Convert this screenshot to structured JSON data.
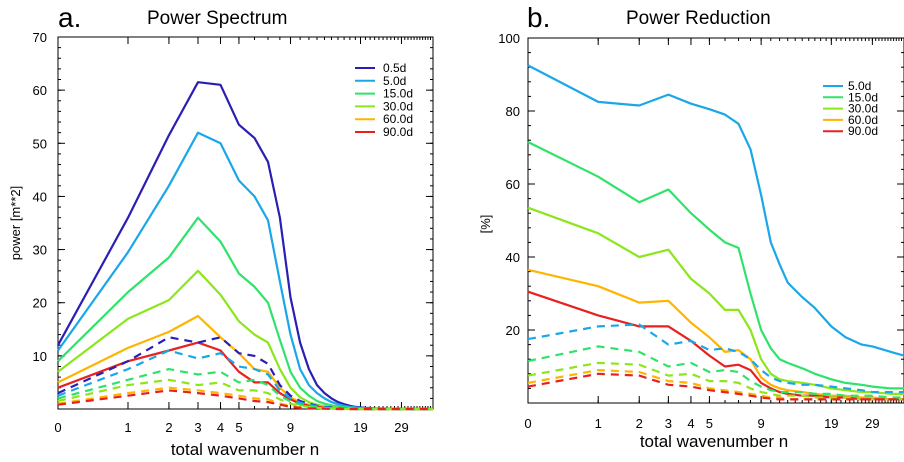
{
  "chart_data": [
    {
      "type": "line",
      "panel_letter": "a.",
      "title": "Power Spectrum",
      "xlabel": "total wavenumber n",
      "ylabel": "power [m**2]",
      "ylim": [
        0,
        70
      ],
      "yticks": [
        10,
        20,
        30,
        40,
        50,
        60,
        70
      ],
      "x_scale": "log(n+1)",
      "xticks": [
        {
          "value": 0,
          "label": "0"
        },
        {
          "value": 1,
          "label": "1"
        },
        {
          "value": 2,
          "label": "2"
        },
        {
          "value": 3,
          "label": "3"
        },
        {
          "value": 4,
          "label": "4"
        },
        {
          "value": 5,
          "label": "5"
        },
        {
          "value": 9,
          "label": "9"
        },
        {
          "value": 19,
          "label": "19"
        },
        {
          "value": 29,
          "label": "29"
        }
      ],
      "xlim": [
        0,
        40
      ],
      "legend_position": "top-right",
      "x": [
        0,
        1,
        2,
        3,
        4,
        5,
        6,
        7,
        8,
        9,
        10,
        11,
        12,
        13,
        14,
        15,
        16,
        17,
        18,
        19,
        20,
        22,
        24,
        26,
        29,
        35,
        40
      ],
      "series": [
        {
          "name": "0.5d",
          "color": "#2a1fb4",
          "style": "solid",
          "values": [
            12,
            36,
            51.5,
            61.5,
            61,
            53.5,
            51,
            46.5,
            36,
            21,
            12.5,
            7.5,
            4.5,
            3,
            2,
            1.3,
            0.9,
            0.6,
            0.4,
            0.3,
            0.2,
            0.1,
            0.1,
            0.05,
            0.05,
            0,
            0
          ]
        },
        {
          "name": "5.0d",
          "color": "#1aa7e8",
          "style": "solid",
          "values": [
            11,
            29.5,
            42,
            52,
            50,
            43,
            40,
            35.5,
            24,
            14,
            7.5,
            4.5,
            3,
            2,
            1.3,
            0.9,
            0.6,
            0.4,
            0.3,
            0.2,
            0.1,
            0.1,
            0.05,
            0.05,
            0,
            0,
            0
          ]
        },
        {
          "name": "15.0d",
          "color": "#2fe36a",
          "style": "solid",
          "values": [
            9,
            22,
            28.5,
            36,
            31.5,
            25.5,
            23,
            20,
            13,
            7,
            4,
            2.5,
            1.5,
            1,
            0.7,
            0.5,
            0.3,
            0.2,
            0.15,
            0.1,
            0.1,
            0.05,
            0,
            0,
            0,
            0,
            0
          ]
        },
        {
          "name": "30.0d",
          "color": "#8be61a",
          "style": "solid",
          "values": [
            7,
            17,
            20.5,
            26,
            21.5,
            16.5,
            14,
            12.5,
            7.5,
            4,
            2.2,
            1.3,
            0.8,
            0.5,
            0.3,
            0.2,
            0.15,
            0.1,
            0.05,
            0.05,
            0,
            0,
            0,
            0,
            0,
            0,
            0
          ]
        },
        {
          "name": "60.0d",
          "color": "#ffb400",
          "style": "solid",
          "values": [
            5,
            11.5,
            14.5,
            17.5,
            13.5,
            10.5,
            7.5,
            7,
            4,
            2.2,
            1.2,
            0.8,
            0.5,
            0.3,
            0.2,
            0.1,
            0.1,
            0.05,
            0,
            0,
            0,
            0,
            0,
            0,
            0,
            0,
            0
          ]
        },
        {
          "name": "90.0d",
          "color": "#e8201e",
          "style": "solid",
          "values": [
            4,
            9,
            11,
            12.5,
            11,
            7,
            5,
            5,
            3,
            1.8,
            1,
            0.6,
            0.4,
            0.2,
            0.1,
            0.1,
            0.05,
            0,
            0,
            0,
            0,
            0,
            0,
            0,
            0,
            0,
            0
          ]
        },
        {
          "name": "",
          "color": "#2a1fb4",
          "style": "dashed",
          "values": [
            3,
            9,
            13.5,
            12.5,
            13.5,
            10.5,
            10,
            8.5,
            4.5,
            2.5,
            1.5,
            1,
            0.6,
            0.4,
            0.3,
            0.2,
            0.1,
            0.1,
            0.05,
            0,
            0,
            0,
            0,
            0,
            0,
            0,
            0
          ]
        },
        {
          "name": "",
          "color": "#1aa7e8",
          "style": "dashed",
          "values": [
            2.5,
            7.5,
            11,
            9.5,
            10.5,
            8,
            7.5,
            6.5,
            3.5,
            2,
            1.2,
            0.8,
            0.5,
            0.3,
            0.2,
            0.1,
            0.1,
            0.05,
            0,
            0,
            0,
            0,
            0,
            0,
            0,
            0,
            0
          ]
        },
        {
          "name": "",
          "color": "#2fe36a",
          "style": "dashed",
          "values": [
            2,
            5.5,
            7.5,
            6.5,
            7,
            5,
            5.5,
            4.5,
            2.5,
            1.4,
            0.8,
            0.5,
            0.3,
            0.2,
            0.1,
            0.1,
            0.05,
            0,
            0,
            0,
            0,
            0,
            0,
            0,
            0,
            0,
            0
          ]
        },
        {
          "name": "",
          "color": "#8be61a",
          "style": "dashed",
          "values": [
            1.5,
            4.5,
            5.5,
            4.5,
            5,
            3.5,
            3.5,
            3,
            1.8,
            1,
            0.6,
            0.4,
            0.2,
            0.1,
            0.1,
            0.05,
            0,
            0,
            0,
            0,
            0,
            0,
            0,
            0,
            0,
            0,
            0
          ]
        },
        {
          "name": "",
          "color": "#ffb400",
          "style": "dashed",
          "values": [
            1,
            3,
            4,
            3.5,
            3,
            2.5,
            2,
            1.8,
            1,
            0.6,
            0.3,
            0.2,
            0.1,
            0.1,
            0.05,
            0,
            0,
            0,
            0,
            0,
            0,
            0,
            0,
            0,
            0,
            0,
            0
          ]
        },
        {
          "name": "",
          "color": "#e8201e",
          "style": "dashed",
          "values": [
            0.8,
            2.5,
            3.5,
            3,
            2.5,
            2,
            1.5,
            1.3,
            0.8,
            0.4,
            0.2,
            0.1,
            0.1,
            0.05,
            0,
            0,
            0,
            0,
            0,
            0,
            0,
            0,
            0,
            0,
            0,
            0,
            0
          ]
        }
      ]
    },
    {
      "type": "line",
      "panel_letter": "b.",
      "title": "Power Reduction",
      "xlabel": "total wavenumber n",
      "ylabel": "[%]",
      "ylim": [
        0,
        100
      ],
      "yticks": [
        20,
        40,
        60,
        80,
        100
      ],
      "x_scale": "log(n+1)",
      "xticks": [
        {
          "value": 0,
          "label": "0"
        },
        {
          "value": 1,
          "label": "1"
        },
        {
          "value": 2,
          "label": "2"
        },
        {
          "value": 3,
          "label": "3"
        },
        {
          "value": 4,
          "label": "4"
        },
        {
          "value": 5,
          "label": "5"
        },
        {
          "value": 9,
          "label": "9"
        },
        {
          "value": 19,
          "label": "19"
        },
        {
          "value": 29,
          "label": "29"
        }
      ],
      "xlim": [
        0,
        40
      ],
      "legend_position": "top-right",
      "x": [
        0,
        1,
        2,
        3,
        4,
        5,
        6,
        7,
        8,
        9,
        10,
        11,
        12,
        14,
        16,
        19,
        22,
        26,
        29,
        35,
        40
      ],
      "series": [
        {
          "name": "5.0d",
          "color": "#1aa7e8",
          "style": "solid",
          "values": [
            92.5,
            82.5,
            81.5,
            84.5,
            82,
            80.5,
            79,
            76.5,
            69.5,
            57,
            44,
            38,
            33,
            29,
            26,
            21,
            18,
            16,
            15.5,
            14,
            13
          ]
        },
        {
          "name": "15.0d",
          "color": "#2fe36a",
          "style": "solid",
          "values": [
            71.5,
            62,
            55,
            58.5,
            52,
            47.5,
            44,
            42.5,
            30,
            20,
            15,
            12,
            11,
            9.5,
            8,
            6.5,
            5.5,
            5,
            4.5,
            4,
            4
          ]
        },
        {
          "name": "30.0d",
          "color": "#8be61a",
          "style": "solid",
          "values": [
            53.5,
            46.5,
            40,
            42,
            34,
            30,
            25.5,
            25.5,
            20,
            12,
            8,
            6.5,
            6,
            5.5,
            5,
            4,
            3.5,
            3,
            3,
            2.5,
            2.5
          ]
        },
        {
          "name": "60.0d",
          "color": "#ffb400",
          "style": "solid",
          "values": [
            36.5,
            32,
            27.5,
            28,
            22,
            18,
            14,
            14.5,
            12,
            7,
            5,
            4,
            3.5,
            3,
            2.5,
            2,
            2,
            1.5,
            1.5,
            1,
            1
          ]
        },
        {
          "name": "90.0d",
          "color": "#e8201e",
          "style": "solid",
          "values": [
            30.5,
            24,
            21,
            21,
            17,
            13,
            10,
            10.5,
            9,
            5.5,
            4,
            3,
            2.5,
            2,
            2,
            1.5,
            1.5,
            1,
            1,
            1,
            1
          ]
        },
        {
          "name": "",
          "color": "#1aa7e8",
          "style": "dashed",
          "values": [
            17.5,
            21,
            21.5,
            16,
            17,
            14.5,
            15,
            14,
            12,
            9,
            7,
            6,
            5.5,
            5,
            5,
            4.5,
            4,
            3.5,
            3,
            3,
            3
          ]
        },
        {
          "name": "",
          "color": "#2fe36a",
          "style": "dashed",
          "values": [
            11.5,
            15.5,
            14,
            10,
            11,
            8.5,
            9,
            8.5,
            6,
            4.5,
            3.5,
            3,
            3,
            3,
            2.5,
            2.5,
            2,
            2,
            2,
            1.5,
            1.5
          ]
        },
        {
          "name": "",
          "color": "#8be61a",
          "style": "dashed",
          "values": [
            7.5,
            11,
            10.5,
            7.5,
            8,
            6,
            6,
            5.5,
            4,
            3,
            2.5,
            2,
            2,
            2,
            1.5,
            1.5,
            1.5,
            1,
            1,
            1,
            1
          ]
        },
        {
          "name": "",
          "color": "#ffb400",
          "style": "dashed",
          "values": [
            5.5,
            9,
            8.5,
            6,
            5.5,
            4,
            3.5,
            3,
            2.5,
            2,
            1.5,
            1.5,
            1,
            1,
            1,
            1,
            1,
            1,
            1,
            1,
            1
          ]
        },
        {
          "name": "",
          "color": "#e8201e",
          "style": "dashed",
          "values": [
            4.5,
            8,
            7.5,
            5,
            4.5,
            3.5,
            3,
            2.5,
            2,
            1.5,
            1.2,
            1,
            1,
            1,
            1,
            1,
            1,
            1,
            1,
            1,
            1
          ]
        }
      ]
    }
  ]
}
